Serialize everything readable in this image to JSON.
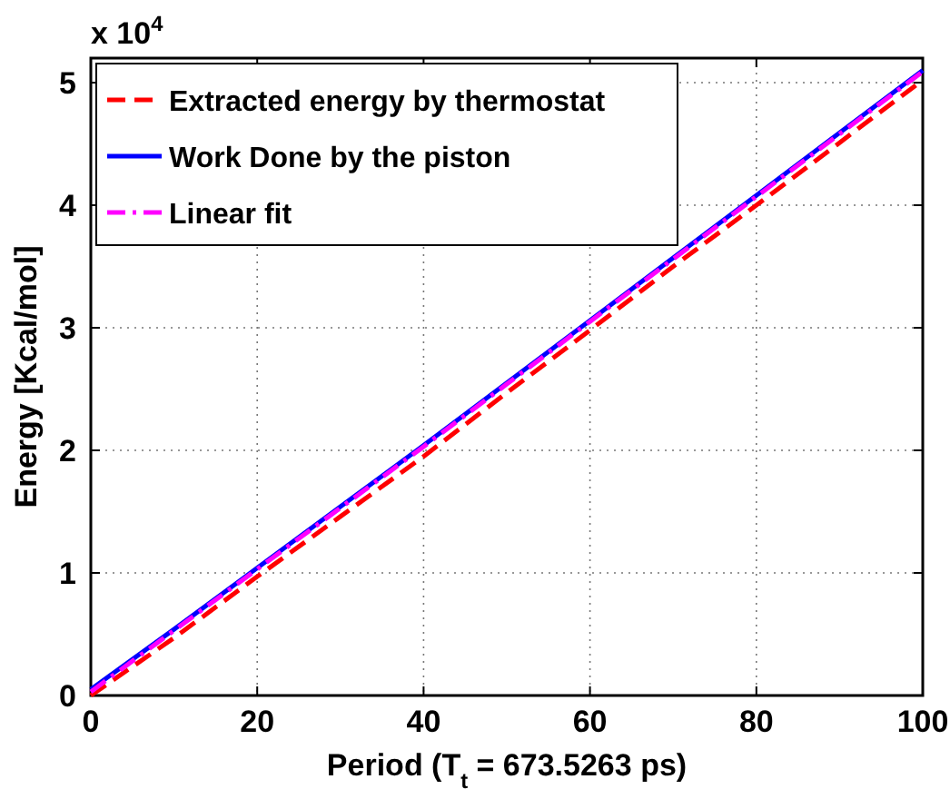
{
  "chart_data": {
    "type": "line",
    "xlabel": "Period (T$_{t}$ = 673.5263 ps)",
    "ylabel": "Energy [Kcal/mol]",
    "annotations": [
      "x 10$^{4}$"
    ],
    "x": [
      0,
      10,
      20,
      30,
      40,
      50,
      60,
      70,
      80,
      90,
      100
    ],
    "series": [
      {
        "name": "Extracted energy by thermostat",
        "color": "#ff0000",
        "line_style": "dashed",
        "values": [
          0,
          0.47,
          0.97,
          1.46,
          1.95,
          2.47,
          2.98,
          3.5,
          4.0,
          4.51,
          5.02
        ]
      },
      {
        "name": "Work Done by the piston",
        "color": "#0000ff",
        "line_style": "solid",
        "values": [
          0.05,
          0.54,
          1.04,
          1.54,
          2.04,
          2.55,
          3.06,
          3.57,
          4.08,
          4.59,
          5.1
        ]
      },
      {
        "name": "Linear fit",
        "color": "#ff00ff",
        "line_style": "dashdot",
        "values": [
          0.03,
          0.53,
          1.03,
          1.53,
          2.03,
          2.54,
          3.05,
          3.56,
          4.07,
          4.58,
          5.09
        ]
      }
    ],
    "xlim": [
      0,
      100
    ],
    "xticks": [
      0,
      20,
      40,
      60,
      80,
      100
    ],
    "ylim": [
      0,
      5.2
    ],
    "yticks": [
      0,
      1,
      2,
      3,
      4,
      5
    ],
    "grid": true,
    "legend": "top left"
  }
}
